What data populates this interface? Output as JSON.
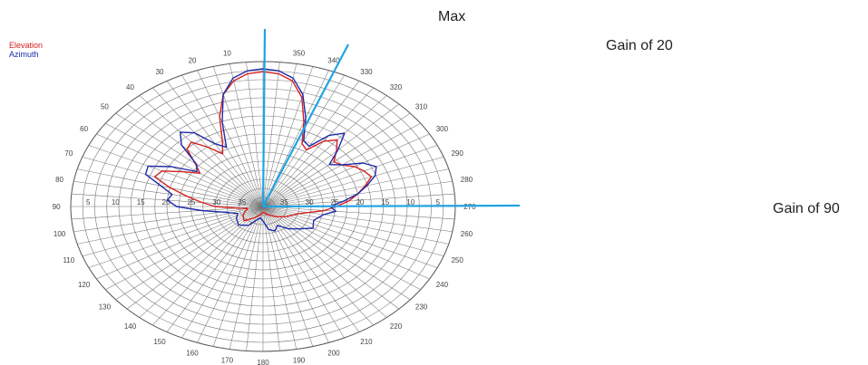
{
  "chart_data": {
    "type": "polar",
    "legend": [
      {
        "name": "Elevation",
        "color": "#d62020"
      },
      {
        "name": "Azimuth",
        "color": "#1f2aa8"
      }
    ],
    "angle_ticks": [
      {
        "label": "350",
        "deg": 350
      },
      {
        "label": "340",
        "deg": 340
      },
      {
        "label": "330",
        "deg": 330
      },
      {
        "label": "320",
        "deg": 320
      },
      {
        "label": "310",
        "deg": 310
      },
      {
        "label": "300",
        "deg": 300
      },
      {
        "label": "290",
        "deg": 290
      },
      {
        "label": "280",
        "deg": 280
      },
      {
        "label": "270",
        "deg": 270
      },
      {
        "label": "260",
        "deg": 260
      },
      {
        "label": "250",
        "deg": 250
      },
      {
        "label": "240",
        "deg": 240
      },
      {
        "label": "230",
        "deg": 230
      },
      {
        "label": "220",
        "deg": 220
      },
      {
        "label": "210",
        "deg": 210
      },
      {
        "label": "200",
        "deg": 200
      },
      {
        "label": "190",
        "deg": 190
      },
      {
        "label": "180",
        "deg": 180
      },
      {
        "label": "170",
        "deg": 170
      },
      {
        "label": "160",
        "deg": 160
      },
      {
        "label": "150",
        "deg": 150
      },
      {
        "label": "140",
        "deg": 140
      },
      {
        "label": "130",
        "deg": 130
      },
      {
        "label": "120",
        "deg": 120
      },
      {
        "label": "110",
        "deg": 110
      },
      {
        "label": "100",
        "deg": 100
      },
      {
        "label": "90",
        "deg": 90
      },
      {
        "label": "80",
        "deg": 80
      },
      {
        "label": "70",
        "deg": 70
      },
      {
        "label": "60",
        "deg": 60
      },
      {
        "label": "50",
        "deg": 50
      },
      {
        "label": "40",
        "deg": 40
      },
      {
        "label": "30",
        "deg": 30
      },
      {
        "label": "20",
        "deg": 20
      },
      {
        "label": "10",
        "deg": 10
      }
    ],
    "radial_tick_labels": [
      "5",
      "10",
      "15",
      "20",
      "25",
      "30",
      "35"
    ],
    "series": [
      {
        "name": "Elevation",
        "color": "#d62020",
        "points": [
          [
            0,
            0.93
          ],
          [
            5,
            0.92
          ],
          [
            10,
            0.88
          ],
          [
            15,
            0.8
          ],
          [
            20,
            0.66
          ],
          [
            25,
            0.5
          ],
          [
            30,
            0.42
          ],
          [
            35,
            0.5
          ],
          [
            40,
            0.58
          ],
          [
            45,
            0.56
          ],
          [
            50,
            0.46
          ],
          [
            55,
            0.4
          ],
          [
            60,
            0.48
          ],
          [
            65,
            0.58
          ],
          [
            70,
            0.6
          ],
          [
            75,
            0.5
          ],
          [
            80,
            0.4
          ],
          [
            85,
            0.32
          ],
          [
            90,
            0.25
          ],
          [
            95,
            0.13
          ],
          [
            100,
            0.08
          ],
          [
            110,
            0.1
          ],
          [
            120,
            0.12
          ],
          [
            135,
            0.14
          ],
          [
            150,
            0.09
          ],
          [
            165,
            0.06
          ],
          [
            180,
            0.04
          ],
          [
            195,
            0.05
          ],
          [
            210,
            0.07
          ],
          [
            225,
            0.1
          ],
          [
            240,
            0.14
          ],
          [
            255,
            0.19
          ],
          [
            265,
            0.32
          ],
          [
            270,
            0.38
          ],
          [
            275,
            0.45
          ],
          [
            280,
            0.5
          ],
          [
            285,
            0.55
          ],
          [
            290,
            0.6
          ],
          [
            295,
            0.58
          ],
          [
            300,
            0.55
          ],
          [
            305,
            0.5
          ],
          [
            310,
            0.48
          ],
          [
            315,
            0.54
          ],
          [
            320,
            0.6
          ],
          [
            325,
            0.55
          ],
          [
            330,
            0.45
          ],
          [
            335,
            0.48
          ],
          [
            340,
            0.62
          ],
          [
            345,
            0.78
          ],
          [
            350,
            0.88
          ],
          [
            355,
            0.92
          ],
          [
            360,
            0.93
          ]
        ]
      },
      {
        "name": "Azimuth",
        "color": "#1f2aa8",
        "points": [
          [
            0,
            0.95
          ],
          [
            5,
            0.94
          ],
          [
            10,
            0.9
          ],
          [
            15,
            0.8
          ],
          [
            20,
            0.62
          ],
          [
            25,
            0.45
          ],
          [
            30,
            0.5
          ],
          [
            35,
            0.62
          ],
          [
            40,
            0.67
          ],
          [
            45,
            0.6
          ],
          [
            50,
            0.45
          ],
          [
            55,
            0.42
          ],
          [
            60,
            0.55
          ],
          [
            65,
            0.66
          ],
          [
            70,
            0.65
          ],
          [
            75,
            0.55
          ],
          [
            80,
            0.48
          ],
          [
            85,
            0.5
          ],
          [
            90,
            0.45
          ],
          [
            95,
            0.32
          ],
          [
            100,
            0.22
          ],
          [
            110,
            0.14
          ],
          [
            120,
            0.16
          ],
          [
            135,
            0.18
          ],
          [
            150,
            0.15
          ],
          [
            160,
            0.1
          ],
          [
            170,
            0.08
          ],
          [
            180,
            0.1
          ],
          [
            190,
            0.16
          ],
          [
            200,
            0.18
          ],
          [
            210,
            0.15
          ],
          [
            220,
            0.2
          ],
          [
            230,
            0.24
          ],
          [
            240,
            0.3
          ],
          [
            250,
            0.28
          ],
          [
            260,
            0.32
          ],
          [
            265,
            0.38
          ],
          [
            270,
            0.35
          ],
          [
            275,
            0.42
          ],
          [
            280,
            0.5
          ],
          [
            285,
            0.56
          ],
          [
            290,
            0.62
          ],
          [
            295,
            0.65
          ],
          [
            300,
            0.6
          ],
          [
            305,
            0.5
          ],
          [
            310,
            0.45
          ],
          [
            315,
            0.55
          ],
          [
            320,
            0.66
          ],
          [
            325,
            0.6
          ],
          [
            330,
            0.48
          ],
          [
            335,
            0.5
          ],
          [
            340,
            0.65
          ],
          [
            345,
            0.8
          ],
          [
            350,
            0.9
          ],
          [
            355,
            0.94
          ],
          [
            360,
            0.95
          ]
        ]
      }
    ],
    "annotations": [
      {
        "label": "Max",
        "deg": 0
      },
      {
        "label": "Gain of 20",
        "deg": 340
      },
      {
        "label": "Gain of 90",
        "deg": 270
      }
    ],
    "line_color": "#1fa3e3"
  }
}
